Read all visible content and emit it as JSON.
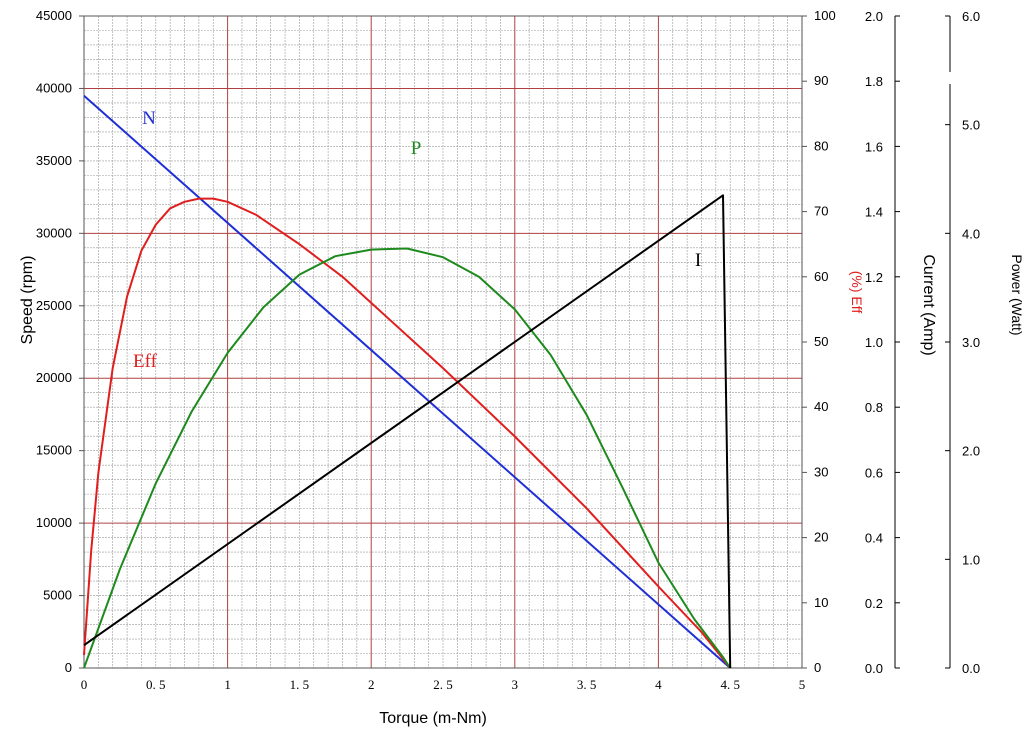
{
  "chart_data": {
    "type": "line",
    "xlabel": "Torque (m-Nm)",
    "x_ticks": [
      "0",
      "0. 5",
      "1",
      "1. 5",
      "2",
      "2. 5",
      "3",
      "3. 5",
      "4",
      "4. 5",
      "5"
    ],
    "xlim": [
      0,
      5
    ],
    "left_axis": {
      "label": "Speed (rpm)",
      "range": [
        0,
        45000
      ],
      "ticks": [
        "0",
        "5000",
        "10000",
        "15000",
        "20000",
        "25000",
        "30000",
        "35000",
        "40000",
        "45000"
      ]
    },
    "eff_axis": {
      "label": "(%) Eff",
      "range": [
        0,
        100
      ],
      "ticks": [
        "0",
        "10",
        "20",
        "30",
        "40",
        "50",
        "60",
        "70",
        "80",
        "90",
        "100"
      ]
    },
    "current_axis": {
      "label": "Current (Amp)",
      "range": [
        0,
        2.0
      ],
      "ticks": [
        "0.0",
        "0.2",
        "0.4",
        "0.6",
        "0.8",
        "1.0",
        "1.2",
        "1.4",
        "1.6",
        "1.8",
        "2.0"
      ]
    },
    "power_axis": {
      "label": "Power (Watt)",
      "range": [
        0,
        6.0
      ],
      "ticks": [
        "0.0",
        "1.0",
        "2.0",
        "3.0",
        "4.0",
        "5.0",
        "6.0"
      ]
    },
    "grid": true,
    "series": [
      {
        "name": "N",
        "axis": "left_axis",
        "color": "#1f2fd6",
        "points": [
          [
            0,
            39500
          ],
          [
            4.5,
            0
          ]
        ]
      },
      {
        "name": "Eff",
        "axis": "eff_axis",
        "color": "#e01e1e",
        "points": [
          [
            0,
            2
          ],
          [
            0.05,
            18
          ],
          [
            0.1,
            30
          ],
          [
            0.2,
            46
          ],
          [
            0.3,
            57
          ],
          [
            0.4,
            64
          ],
          [
            0.5,
            68
          ],
          [
            0.6,
            70.5
          ],
          [
            0.7,
            71.5
          ],
          [
            0.8,
            72
          ],
          [
            0.9,
            72
          ],
          [
            1.0,
            71.5
          ],
          [
            1.2,
            69.5
          ],
          [
            1.5,
            65
          ],
          [
            1.8,
            60
          ],
          [
            2.0,
            56
          ],
          [
            2.5,
            46
          ],
          [
            3.0,
            35.5
          ],
          [
            3.5,
            24.5
          ],
          [
            4.0,
            12.5
          ],
          [
            4.3,
            5.5
          ],
          [
            4.5,
            0
          ]
        ]
      },
      {
        "name": "P",
        "axis": "power_axis",
        "color": "#1e8a1e",
        "points": [
          [
            0,
            0
          ],
          [
            0.25,
            0.91
          ],
          [
            0.5,
            1.7
          ],
          [
            0.75,
            2.36
          ],
          [
            1.0,
            2.9
          ],
          [
            1.25,
            3.32
          ],
          [
            1.5,
            3.62
          ],
          [
            1.75,
            3.79
          ],
          [
            2.0,
            3.85
          ],
          [
            2.25,
            3.86
          ],
          [
            2.5,
            3.78
          ],
          [
            2.75,
            3.6
          ],
          [
            3.0,
            3.3
          ],
          [
            3.25,
            2.88
          ],
          [
            3.5,
            2.33
          ],
          [
            3.75,
            1.66
          ],
          [
            4.0,
            0.97
          ],
          [
            4.25,
            0.45
          ],
          [
            4.45,
            0.1
          ],
          [
            4.5,
            0
          ]
        ]
      },
      {
        "name": "I",
        "axis": "current_axis",
        "color": "#000000",
        "points": [
          [
            0,
            0.07
          ],
          [
            4.45,
            1.45
          ],
          [
            4.5,
            0
          ]
        ]
      }
    ]
  }
}
